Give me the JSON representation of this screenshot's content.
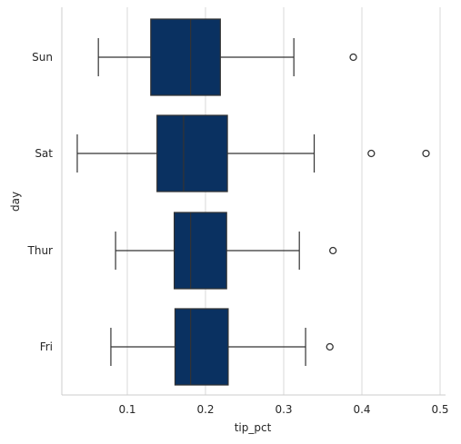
{
  "chart_data": {
    "type": "box",
    "orientation": "horizontal",
    "xlabel": "tip_pct",
    "ylabel": "day",
    "xlim": [
      0.0,
      0.5
    ],
    "x_ticks": [
      "0.1",
      "0.2",
      "0.3",
      "0.4",
      "0.5"
    ],
    "x_tick_values": [
      0.1,
      0.2,
      0.3,
      0.4,
      0.5
    ],
    "grid": "vertical",
    "box_color": "#0a3161",
    "categories": [
      "Sun",
      "Sat",
      "Thur",
      "Fri"
    ],
    "boxes": [
      {
        "category": "Sun",
        "whisker_low": 0.063,
        "q1": 0.13,
        "median": 0.181,
        "q3": 0.219,
        "whisker_high": 0.313,
        "outliers": [
          0.389
        ]
      },
      {
        "category": "Sat",
        "whisker_low": 0.036,
        "q1": 0.138,
        "median": 0.172,
        "q3": 0.228,
        "whisker_high": 0.339,
        "outliers": [
          0.412,
          0.482
        ]
      },
      {
        "category": "Thur",
        "whisker_low": 0.085,
        "q1": 0.16,
        "median": 0.181,
        "q3": 0.227,
        "whisker_high": 0.32,
        "outliers": [
          0.363
        ]
      },
      {
        "category": "Fri",
        "whisker_low": 0.079,
        "q1": 0.161,
        "median": 0.181,
        "q3": 0.229,
        "whisker_high": 0.328,
        "outliers": [
          0.359
        ]
      }
    ]
  }
}
